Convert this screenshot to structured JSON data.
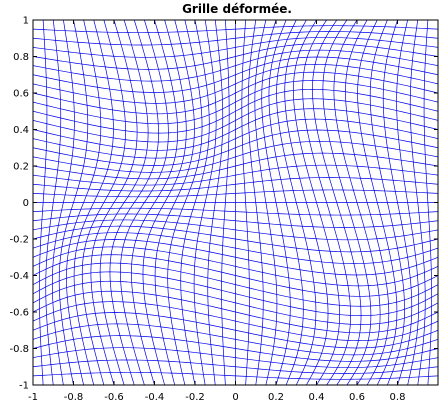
{
  "chart_data": {
    "type": "line",
    "title": "Grille déformée.",
    "xlabel": "",
    "ylabel": "",
    "xlim": [
      -1,
      1
    ],
    "ylim": [
      -1,
      1
    ],
    "xticks": [
      -1,
      -0.8,
      -0.6,
      -0.4,
      -0.2,
      0,
      0.2,
      0.4,
      0.6,
      0.8
    ],
    "yticks": [
      -1,
      -0.8,
      -0.6,
      -0.4,
      -0.2,
      0,
      0.2,
      0.4,
      0.6,
      0.8,
      1
    ],
    "xtick_labels": [
      "-1",
      "-0.8",
      "-0.6",
      "-0.4",
      "-0.2",
      "0",
      "0.2",
      "0.4",
      "0.6",
      "0.8"
    ],
    "ytick_labels": [
      "-1",
      "-0.8",
      "-0.6",
      "-0.4",
      "-0.2",
      "0",
      "0.2",
      "0.4",
      "0.6",
      "0.8",
      "1"
    ],
    "grid_lines_per_direction": 41,
    "line_color": "#0000ee",
    "grid": false,
    "legend": "none"
  }
}
